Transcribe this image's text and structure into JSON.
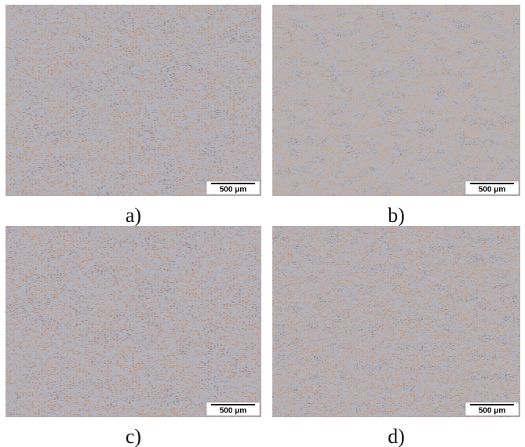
{
  "panels": [
    {
      "label": "a)",
      "scale_bar": "500 μm"
    },
    {
      "label": "b)",
      "scale_bar": "500 μm"
    },
    {
      "label": "c)",
      "scale_bar": "500 μm"
    },
    {
      "label": "d)",
      "scale_bar": "500 μm"
    }
  ]
}
